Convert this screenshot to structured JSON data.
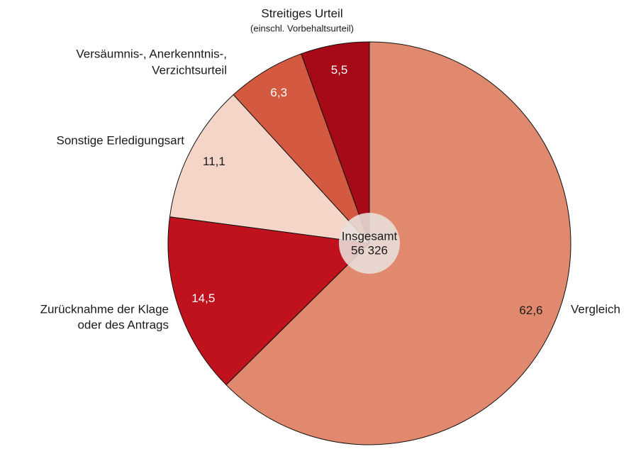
{
  "chart_data": {
    "type": "pie",
    "categories": [
      [
        "Vergleich"
      ],
      [
        "Zurücknahme der Klage",
        "oder des Antrags"
      ],
      [
        "Sonstige Erledigungsart"
      ],
      [
        "Versäumnis-, Anerkenntnis-,",
        "Verzichtsurteil"
      ],
      [
        "Streitiges Urteil",
        "(einschl. Vorbehaltsurteil)"
      ]
    ],
    "values": [
      62.6,
      14.5,
      11.1,
      6.3,
      5.5
    ],
    "value_labels": [
      "62,6",
      "14,5",
      "11,1",
      "6,3",
      "5,5"
    ],
    "colors": [
      "#e0896e",
      "#c0121c",
      "#f5d5c8",
      "#d35a40",
      "#a50a16"
    ],
    "center_label": "Insgesamt",
    "total": {
      "value": 56326,
      "label": "56 326"
    }
  }
}
